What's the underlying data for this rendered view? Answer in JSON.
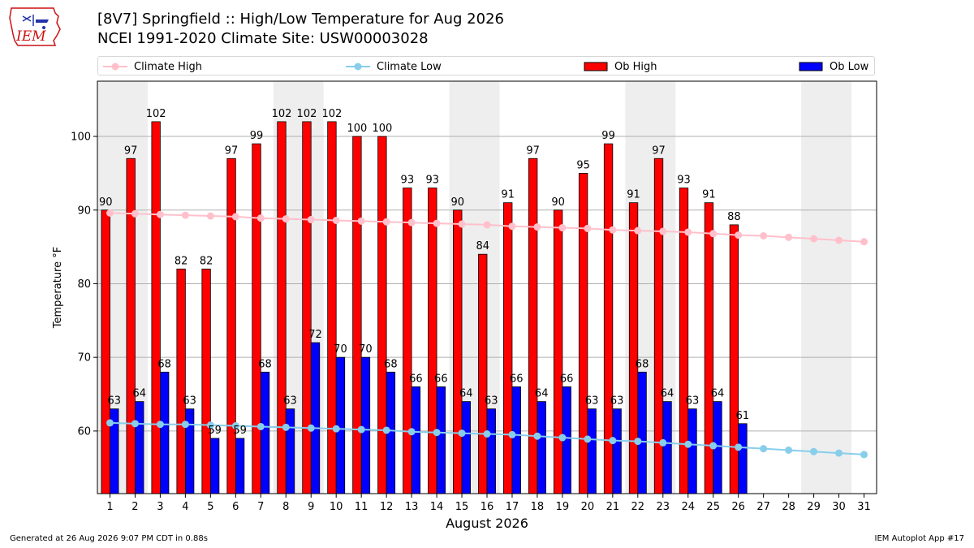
{
  "header": {
    "title_line1": "[8V7] Springfield :: High/Low Temperature for Aug 2026",
    "title_line2": "NCEI 1991-2020 Climate Site: USW00003028",
    "logo_text": "IEM"
  },
  "footer": {
    "generated": "Generated at 26 Aug 2026 9:07 PM CDT in 0.88s",
    "app": "IEM Autoplot App #17"
  },
  "colors": {
    "ob_high": "#ff0000",
    "ob_low": "#0000ff",
    "climate_high": "#ffc0cb",
    "climate_low": "#87ceeb",
    "weekend_shade": "#eeeeee",
    "grid": "#b0b0b0"
  },
  "chart_data": {
    "type": "bar",
    "title": "[8V7] Springfield :: High/Low Temperature for Aug 2026",
    "subtitle": "NCEI 1991-2020 Climate Site: USW00003028",
    "xlabel": "August 2026",
    "ylabel": "Temperature °F",
    "ylim": [
      51.5,
      107.5
    ],
    "yticks": [
      60,
      70,
      80,
      90,
      100
    ],
    "grid": "horizontal",
    "legend_position": "top",
    "days": [
      1,
      2,
      3,
      4,
      5,
      6,
      7,
      8,
      9,
      10,
      11,
      12,
      13,
      14,
      15,
      16,
      17,
      18,
      19,
      20,
      21,
      22,
      23,
      24,
      25,
      26,
      27,
      28,
      29,
      30,
      31
    ],
    "weekend_shaded_days": [
      [
        1,
        2
      ],
      [
        8,
        9
      ],
      [
        15,
        16
      ],
      [
        22,
        23
      ],
      [
        29,
        30
      ]
    ],
    "series": [
      {
        "name": "Climate High",
        "kind": "line",
        "values": [
          89.6,
          89.5,
          89.4,
          89.3,
          89.2,
          89.1,
          88.9,
          88.8,
          88.7,
          88.6,
          88.5,
          88.4,
          88.3,
          88.2,
          88.1,
          88.0,
          87.8,
          87.7,
          87.6,
          87.5,
          87.3,
          87.2,
          87.1,
          87.0,
          86.8,
          86.6,
          86.5,
          86.3,
          86.1,
          85.9,
          85.7
        ]
      },
      {
        "name": "Climate Low",
        "kind": "line",
        "values": [
          61.1,
          61.0,
          60.9,
          60.9,
          60.8,
          60.7,
          60.6,
          60.5,
          60.4,
          60.3,
          60.2,
          60.1,
          59.9,
          59.8,
          59.7,
          59.6,
          59.5,
          59.3,
          59.1,
          58.9,
          58.7,
          58.6,
          58.4,
          58.2,
          58.0,
          57.8,
          57.6,
          57.4,
          57.2,
          57.0,
          56.8
        ]
      },
      {
        "name": "Ob High",
        "kind": "bar",
        "values": [
          90,
          97,
          102,
          82,
          82,
          97,
          99,
          102,
          102,
          102,
          100,
          100,
          93,
          93,
          90,
          84,
          91,
          97,
          90,
          95,
          99,
          91,
          97,
          93,
          91,
          88
        ]
      },
      {
        "name": "Ob Low",
        "kind": "bar",
        "values": [
          63,
          64,
          68,
          63,
          59,
          59,
          68,
          63,
          72,
          70,
          70,
          68,
          66,
          66,
          64,
          63,
          66,
          64,
          66,
          63,
          63,
          68,
          64,
          63,
          64,
          61
        ]
      }
    ]
  }
}
